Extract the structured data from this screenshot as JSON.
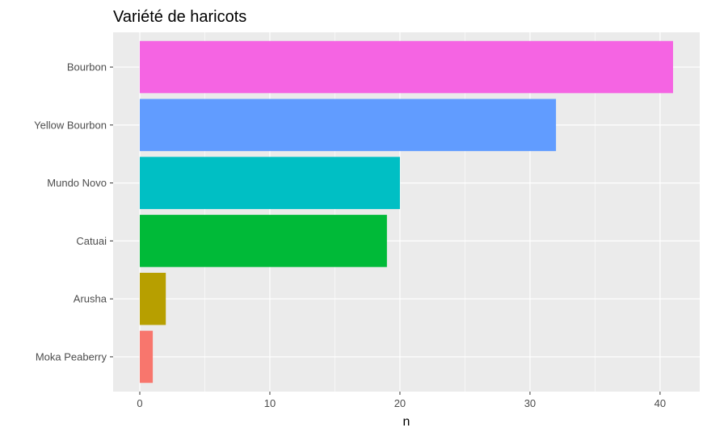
{
  "chart_data": {
    "type": "bar",
    "orientation": "horizontal",
    "title": "Variété de haricots",
    "xlabel": "n",
    "ylabel": "",
    "categories": [
      "Moka Peaberry",
      "Arusha",
      "Catuai",
      "Mundo Novo",
      "Yellow Bourbon",
      "Bourbon"
    ],
    "values": [
      1,
      2,
      19,
      20,
      32,
      41
    ],
    "colors": [
      "#F8766D",
      "#B79F00",
      "#00BA38",
      "#00BFC4",
      "#619CFF",
      "#F564E3"
    ],
    "xlim": [
      -2.05,
      43.05
    ],
    "x_ticks": [
      0,
      10,
      20,
      30,
      40
    ],
    "grid": true,
    "legend": "none",
    "panel_background": "#EBEBEB",
    "grid_color": "#FFFFFF"
  }
}
